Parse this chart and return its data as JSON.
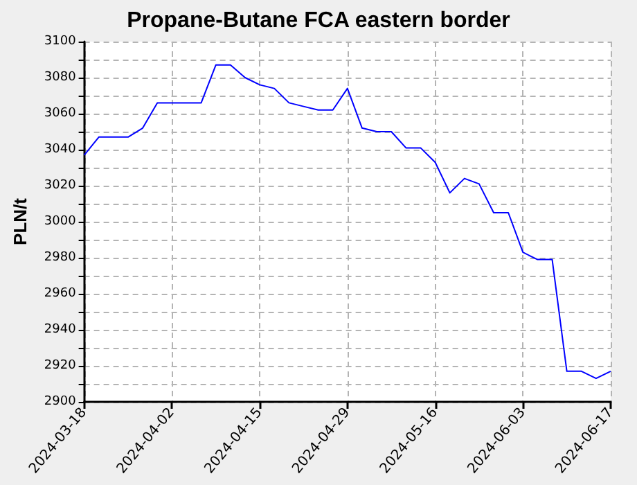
{
  "chart_data": {
    "type": "line",
    "title": "Propane-Butane FCA eastern border",
    "ylabel": "PLN/t",
    "categories": [
      "2024-03-18",
      null,
      null,
      null,
      null,
      null,
      "2024-04-02",
      null,
      null,
      null,
      null,
      null,
      "2024-04-15",
      null,
      null,
      null,
      null,
      null,
      "2024-04-29",
      null,
      null,
      null,
      null,
      null,
      "2024-05-16",
      null,
      null,
      null,
      null,
      null,
      "2024-06-03",
      null,
      null,
      null,
      null,
      null,
      "2024-06-17"
    ],
    "series": [
      {
        "color": "#0000ff",
        "values": [
          3037,
          3047,
          3047,
          3047,
          3052,
          3066,
          3066,
          3066,
          3066,
          3087,
          3087,
          3080,
          3076,
          3074,
          3066,
          3064,
          3062,
          3062,
          3074,
          3052,
          3050,
          3050,
          3041,
          3041,
          3033,
          3016,
          3024,
          3021,
          3005,
          3005,
          2983,
          2979,
          2979,
          2917,
          2917,
          2913,
          2917
        ]
      }
    ],
    "ylim": [
      2900,
      3100
    ],
    "yticks": [
      2900,
      2920,
      2940,
      2960,
      2980,
      3000,
      3020,
      3040,
      3060,
      3080,
      3100
    ],
    "grid": true,
    "marker": "none",
    "line_style": "solid"
  }
}
